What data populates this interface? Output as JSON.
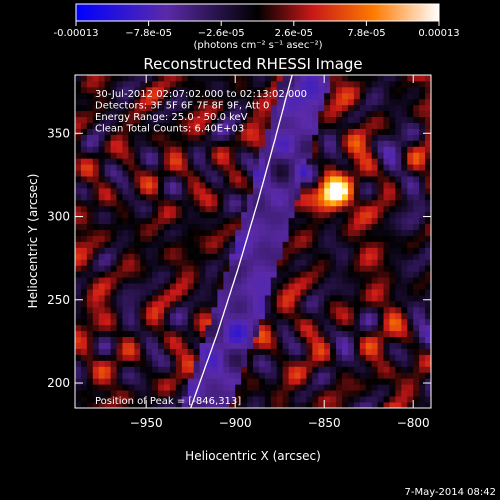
{
  "colorbar": {
    "tick_labels": [
      "-0.00013",
      "−7.8e-05",
      "−2.6e-05",
      "2.6e-05",
      "7.8e-05",
      "0.00013"
    ],
    "unit_label": "(photons cm⁻² s⁻¹ asec⁻²)"
  },
  "chart_data": {
    "type": "heatmap",
    "title": "Reconstructed RHESSI Image",
    "xlabel": "Heliocentric X (arcsec)",
    "ylabel": "Heliocentric Y (arcsec)",
    "xlim": [
      -990,
      -790
    ],
    "ylim": [
      185,
      385
    ],
    "x_ticks": [
      -950,
      -900,
      -850,
      -800
    ],
    "y_ticks": [
      200,
      250,
      300,
      350
    ],
    "x_tick_labels": [
      "−950",
      "−900",
      "−850",
      "−800"
    ],
    "y_tick_labels": [
      "200",
      "250",
      "300",
      "350"
    ],
    "color_range": [
      -0.00013,
      0.00013
    ],
    "peak": {
      "x": -846,
      "y": 313
    },
    "limb_curve": {
      "x": [
        -925,
        -910,
        -898,
        -887,
        -878,
        -868
      ],
      "y": [
        185,
        230,
        270,
        310,
        345,
        385
      ]
    },
    "info_lines": [
      "30-Jul-2012 02:07:02.000 to 02:13:02.000",
      "Detectors: 3F 5F 6F 7F 8F 9F, Att 0",
      "Energy Range: 25.0 - 50.0 keV",
      "Clean     Total Counts: 6.40E+03"
    ],
    "peak_label": "Position of Peak = [-846,313]"
  },
  "footer_date": "7-May-2014 08:42"
}
